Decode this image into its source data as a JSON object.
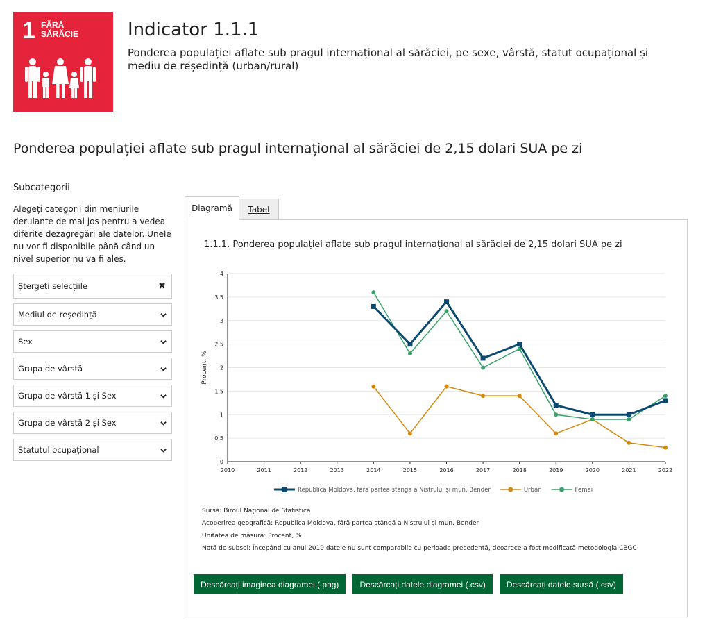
{
  "sdg": {
    "number": "1",
    "name_line1": "FĂRĂ",
    "name_line2": "SĂRĂCIE",
    "color": "#e5243b"
  },
  "indicator": {
    "title": "Indicator 1.1.1",
    "description": "Ponderea populației aflate sub pragul internațional al sărăciei, pe sexe, vârstă, statut ocupațional și mediu de reședință (urban/rural)"
  },
  "page_subtitle": "Ponderea populației aflate sub pragul internațional al sărăciei de 2,15 dolari SUA pe zi",
  "sidebar": {
    "heading": "Subcategorii",
    "help": "Alegeți categorii din meniurile derulante de mai jos pentru a vedea diferite dezagregări ale datelor. Unele nu vor fi disponibile până când un nivel superior nu va fi ales.",
    "clear_label": "Ștergeți selecțiile",
    "clear_icon": "close-icon",
    "selects": [
      "Mediul de reședință",
      "Sex",
      "Grupa de vârstă",
      "Grupa de vârstă 1 și Sex",
      "Grupa de vârstă 2 și Sex",
      "Statutul ocupațional"
    ]
  },
  "tabs": [
    "Diagramă",
    "Tabel"
  ],
  "active_tab": "Diagramă",
  "chart_data": {
    "type": "line",
    "title": "1.1.1. Ponderea populației aflate sub pragul internațional al sărăciei de 2,15 dolari SUA pe zi",
    "ylabel": "Procent, %",
    "xlabel": "",
    "ylim": [
      0,
      4
    ],
    "yticks": [
      "0",
      "0,5",
      "1",
      "1,5",
      "2",
      "2,5",
      "3",
      "3,5",
      "4"
    ],
    "x": [
      "2010",
      "2011",
      "2012",
      "2013",
      "2014",
      "2015",
      "2016",
      "2017",
      "2018",
      "2019",
      "2020",
      "2021",
      "2022"
    ],
    "grid": true,
    "legend_position": "bottom",
    "series": [
      {
        "name": "Republica Moldova, fără partea stângă a Nistrului și mun. Bender",
        "color": "#0b4a6f",
        "marker": "square",
        "values": [
          null,
          null,
          null,
          null,
          3.3,
          2.5,
          3.4,
          2.2,
          2.5,
          1.2,
          1.0,
          1.0,
          1.3
        ]
      },
      {
        "name": "Urban",
        "color": "#d4890f",
        "marker": "circle",
        "values": [
          null,
          null,
          null,
          null,
          1.6,
          0.6,
          1.6,
          1.4,
          1.4,
          0.6,
          0.9,
          0.4,
          0.3
        ]
      },
      {
        "name": "Femei",
        "color": "#3aa36b",
        "marker": "circle",
        "values": [
          null,
          null,
          null,
          null,
          3.6,
          2.3,
          3.2,
          2.0,
          2.4,
          1.0,
          0.9,
          0.9,
          1.4
        ]
      }
    ]
  },
  "notes": {
    "source": "Sursă: Biroul Național de Statistică",
    "coverage": "Acoperirea geografică: Republica Moldova, fără partea stângă a Nistrului și mun. Bender",
    "unit": "Unitatea de măsură: Procent, %",
    "footnote": "Notă de subsol: Începând cu anul 2019 datele nu sunt comparabile cu perioada precedentă, deoarece a fost modificată metodologia CBGC"
  },
  "buttons": {
    "download_png": "Descărcați imaginea diagramei (.png)",
    "download_chart_csv": "Descărcați datele diagramei (.csv)",
    "download_source_csv": "Descărcați datele sursă (.csv)",
    "color": "#006633"
  }
}
